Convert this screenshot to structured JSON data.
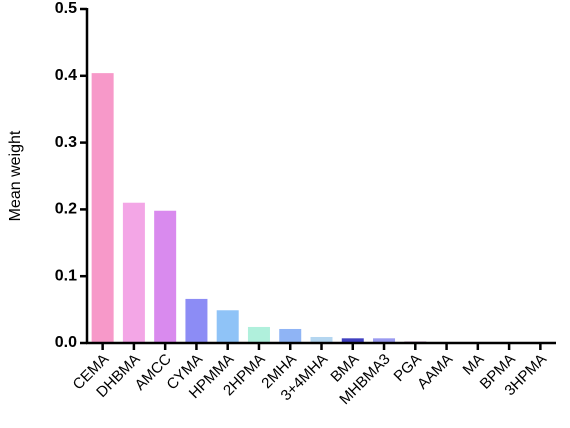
{
  "chart_data": {
    "type": "bar",
    "y_label": "Mean weight",
    "categories": [
      "CEMA",
      "DHBMA",
      "AMCC",
      "CYMA",
      "HPMMA",
      "2HPMA",
      "2MHA",
      "3+4MHA",
      "BMA",
      "MHBMA3",
      "PGA",
      "AAMA",
      "MA",
      "BPMA",
      "3HPMA"
    ],
    "values": [
      0.404,
      0.21,
      0.198,
      0.066,
      0.049,
      0.024,
      0.021,
      0.009,
      0.007,
      0.007,
      0.003,
      0.001,
      0,
      0,
      0
    ],
    "colors": [
      "#f799c9",
      "#f3a6e6",
      "#d98aee",
      "#8c8cf5",
      "#8fc3f7",
      "#b0f0dc",
      "#8fb4f5",
      "#b4d6f0",
      "#4040c0",
      "#9a9af0",
      "#e0d0e0",
      "#cccccc",
      "#cccccc",
      "#cccccc",
      "#cccccc"
    ],
    "ylim": [
      0,
      0.5
    ],
    "yticks": [
      {
        "value": 0,
        "label": "0.0"
      },
      0.1,
      0.2,
      0.3,
      0.4,
      0.5
    ],
    "grid": false
  }
}
